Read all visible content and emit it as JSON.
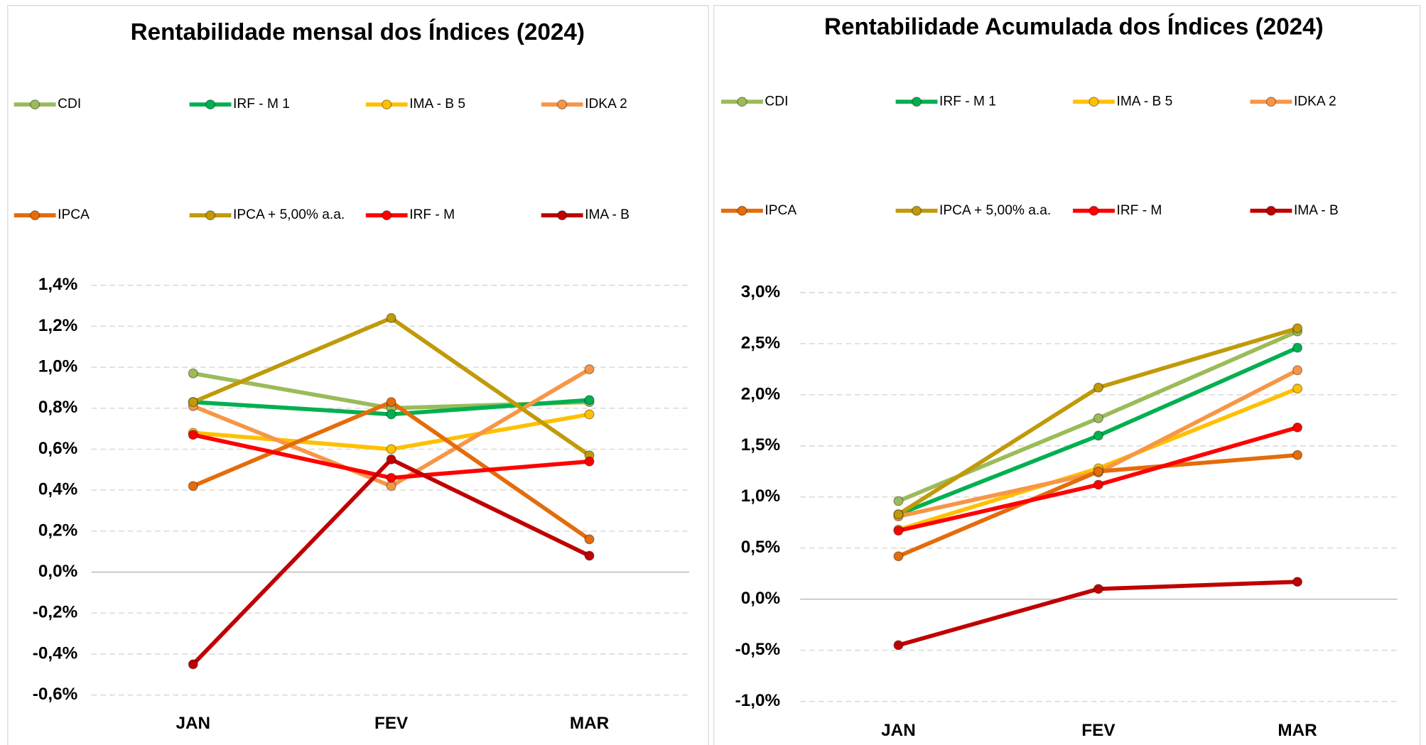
{
  "chart_data": [
    {
      "type": "line",
      "title": "Rentabilidade mensal dos Índices (2024)",
      "categories": [
        "JAN",
        "FEV",
        "MAR"
      ],
      "ylim": [
        -0.6,
        1.4
      ],
      "yticks": [
        {
          "value": -0.6,
          "label": "-0,6%"
        },
        {
          "value": -0.4,
          "label": "-0,4%"
        },
        {
          "value": -0.2,
          "label": "-0,2%"
        },
        {
          "value": 0,
          "label": "0,0%"
        },
        {
          "value": 0.2,
          "label": "0,2%"
        },
        {
          "value": 0.4,
          "label": "0,4%"
        },
        {
          "value": 0.6,
          "label": "0,6%"
        },
        {
          "value": 0.8,
          "label": "0,8%"
        },
        {
          "value": 1.0,
          "label": "1,0%"
        },
        {
          "value": 1.2,
          "label": "1,2%"
        },
        {
          "value": 1.4,
          "label": "1,4%"
        }
      ],
      "grid": true,
      "legend": "top",
      "series": [
        {
          "name": "CDI",
          "color": "#9bbb59",
          "values": [
            0.97,
            0.8,
            0.83
          ]
        },
        {
          "name": "IRF - M 1",
          "color": "#00b050",
          "values": [
            0.83,
            0.77,
            0.84
          ]
        },
        {
          "name": "IMA - B 5",
          "color": "#ffc000",
          "values": [
            0.68,
            0.6,
            0.77
          ]
        },
        {
          "name": "IDKA 2",
          "color": "#f79646",
          "values": [
            0.81,
            0.42,
            0.99
          ]
        },
        {
          "name": "IPCA",
          "color": "#e46c0a",
          "values": [
            0.42,
            0.83,
            0.16
          ]
        },
        {
          "name": "IPCA + 5,00% a.a.",
          "color": "#c09a0a",
          "values": [
            0.83,
            1.24,
            0.57
          ]
        },
        {
          "name": "IRF - M",
          "color": "#ff0000",
          "values": [
            0.67,
            0.46,
            0.54
          ]
        },
        {
          "name": "IMA - B",
          "color": "#c00000",
          "values": [
            -0.45,
            0.55,
            0.08
          ]
        }
      ]
    },
    {
      "type": "line",
      "title": "Rentabilidade Acumulada dos Índices (2024)",
      "categories": [
        "JAN",
        "FEV",
        "MAR"
      ],
      "ylim": [
        -1.0,
        3.0
      ],
      "yticks": [
        {
          "value": -1.0,
          "label": "-1,0%"
        },
        {
          "value": -0.5,
          "label": "-0,5%"
        },
        {
          "value": 0,
          "label": "0,0%"
        },
        {
          "value": 0.5,
          "label": "0,5%"
        },
        {
          "value": 1.0,
          "label": "1,0%"
        },
        {
          "value": 1.5,
          "label": "1,5%"
        },
        {
          "value": 2.0,
          "label": "2,0%"
        },
        {
          "value": 2.5,
          "label": "2,5%"
        },
        {
          "value": 3.0,
          "label": "3,0%"
        }
      ],
      "grid": true,
      "legend": "top",
      "series": [
        {
          "name": "CDI",
          "color": "#9bbb59",
          "values": [
            0.96,
            1.77,
            2.62
          ]
        },
        {
          "name": "IRF - M 1",
          "color": "#00b050",
          "values": [
            0.83,
            1.6,
            2.46
          ]
        },
        {
          "name": "IMA - B 5",
          "color": "#ffc000",
          "values": [
            0.68,
            1.28,
            2.06
          ]
        },
        {
          "name": "IDKA 2",
          "color": "#f79646",
          "values": [
            0.81,
            1.24,
            2.24
          ]
        },
        {
          "name": "IPCA",
          "color": "#e46c0a",
          "values": [
            0.42,
            1.25,
            1.41
          ]
        },
        {
          "name": "IPCA + 5,00% a.a.",
          "color": "#c09a0a",
          "values": [
            0.83,
            2.07,
            2.65
          ]
        },
        {
          "name": "IRF - M",
          "color": "#ff0000",
          "values": [
            0.67,
            1.12,
            1.68
          ]
        },
        {
          "name": "IMA - B",
          "color": "#c00000",
          "values": [
            -0.45,
            0.1,
            0.17
          ]
        }
      ]
    }
  ]
}
